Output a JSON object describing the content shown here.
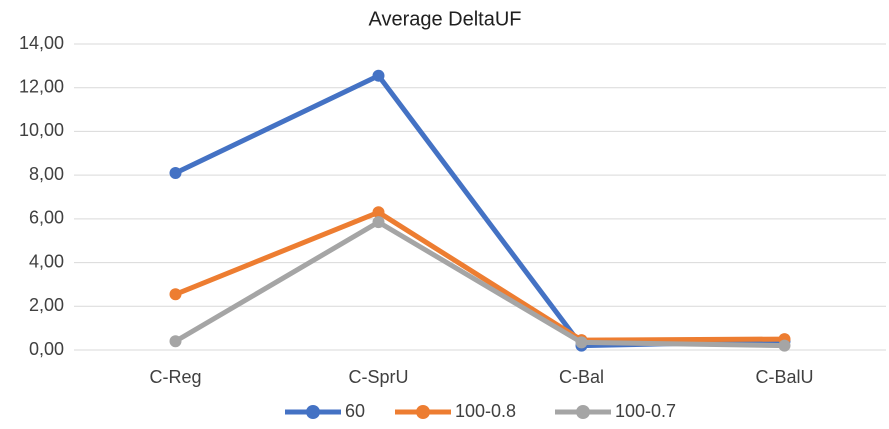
{
  "chart_data": {
    "type": "line",
    "title": "Average DeltaUF",
    "categories": [
      "C-Reg",
      "C-SprU",
      "C-Bal",
      "C-BalU"
    ],
    "series": [
      {
        "name": "60",
        "color": "#4472c4",
        "values": [
          8.1,
          12.55,
          0.2,
          0.4
        ]
      },
      {
        "name": "100-0.8",
        "color": "#ed7d31",
        "values": [
          2.55,
          6.3,
          0.45,
          0.5
        ]
      },
      {
        "name": "100-0.7",
        "color": "#a5a5a5",
        "values": [
          0.4,
          5.85,
          0.35,
          0.2
        ]
      }
    ],
    "ylim": [
      0,
      14
    ],
    "yticks": [
      {
        "value": 0,
        "label": "0,00"
      },
      {
        "value": 2,
        "label": "2,00"
      },
      {
        "value": 4,
        "label": "4,00"
      },
      {
        "value": 6,
        "label": "6,00"
      },
      {
        "value": 8,
        "label": "8,00"
      },
      {
        "value": 10,
        "label": "10,00"
      },
      {
        "value": 12,
        "label": "12,00"
      },
      {
        "value": 14,
        "label": "14,00"
      }
    ],
    "grid": true
  }
}
